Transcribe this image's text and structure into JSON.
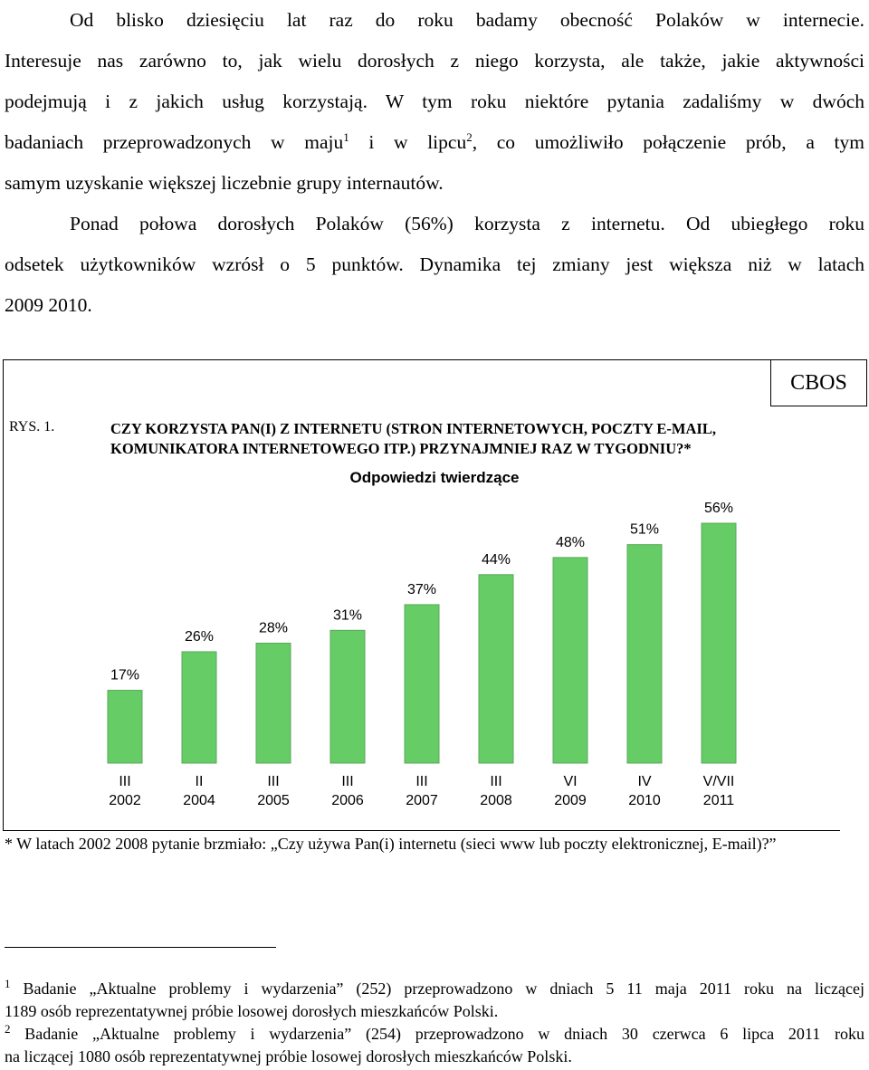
{
  "intro": {
    "p1_l1": "Od blisko dziesięciu lat raz do roku badamy obecność Polaków w internecie.",
    "p1_l2": "Interesuje nas zarówno to, jak wielu dorosłych z niego korzysta, ale także, jakie aktywności",
    "p1_l3": "podejmują i z jakich usług korzystają. W tym roku niektóre pytania zadaliśmy w dwóch",
    "p1_l4a": "badaniach przeprowadzonych w maju",
    "p1_l4sup1": "1",
    "p1_l4b": " i w lipcu",
    "p1_l4sup2": "2",
    "p1_l4c": ", co umożliwiło połączenie prób, a tym",
    "p1_l5": "samym uzyskanie większej liczebnie grupy internautów.",
    "p2_l1": "Ponad połowa dorosłych Polaków (56%) korzysta z internetu. Od ubiegłego roku",
    "p2_l2": "odsetek użytkowników wzrósł o 5 punktów. Dynamika tej zmiany jest większa niż w latach",
    "p2_l3": "2009 2010."
  },
  "chart_meta": {
    "source_badge": "CBOS",
    "figure_label": "RYS. 1.",
    "title_l1": "CZY KORZYSTA PAN(I) Z INTERNETU (STRON INTERNETOWYCH, POCZTY E-MAIL,",
    "title_l2": "KOMUNIKATORA INTERNETOWEGO ITP.) PRZYNAJMNIEJ RAZ W TYGODNIU?*",
    "subtitle": "Odpowiedzi twierdzące"
  },
  "chart_data": {
    "type": "bar",
    "title": "CZY KORZYSTA PAN(I) Z INTERNETU (STRON INTERNETOWYCH, POCZTY E-MAIL, KOMUNIKATORA INTERNETOWEGO ITP.) PRZYNAJMNIEJ RAZ W TYGODNIU?*",
    "subtitle": "Odpowiedzi twierdzące",
    "categories": [
      {
        "month": "III",
        "year": "2002"
      },
      {
        "month": "II",
        "year": "2004"
      },
      {
        "month": "III",
        "year": "2005"
      },
      {
        "month": "III",
        "year": "2006"
      },
      {
        "month": "III",
        "year": "2007"
      },
      {
        "month": "III",
        "year": "2008"
      },
      {
        "month": "VI",
        "year": "2009"
      },
      {
        "month": "IV",
        "year": "2010"
      },
      {
        "month": "V/VII",
        "year": "2011"
      }
    ],
    "values": [
      17,
      26,
      28,
      31,
      37,
      44,
      48,
      51,
      56
    ],
    "value_labels": [
      "17%",
      "26%",
      "28%",
      "31%",
      "37%",
      "44%",
      "48%",
      "51%",
      "56%"
    ],
    "ylim": [
      0,
      56
    ],
    "bar_color": "#66cc66",
    "grid": false,
    "legend": "none"
  },
  "footnote_star": "* W latach 2002 2008 pytanie brzmiało: „Czy używa Pan(i) internetu (sieci www lub poczty elektronicznej, E-mail)?”",
  "footnotes": [
    {
      "num": "1",
      "l1": "Badanie „Aktualne problemy i wydarzenia” (252) przeprowadzono w dniach 5 11 maja 2011 roku na liczącej",
      "l2": "1189 osób reprezentatywnej próbie losowej dorosłych mieszkańców Polski."
    },
    {
      "num": "2",
      "l1": "Badanie „Aktualne problemy i wydarzenia” (254) przeprowadzono w dniach 30 czerwca 6 lipca 2011 roku",
      "l2": "na liczącej 1080 osób reprezentatywnej próbie losowej dorosłych mieszkańców Polski."
    }
  ]
}
